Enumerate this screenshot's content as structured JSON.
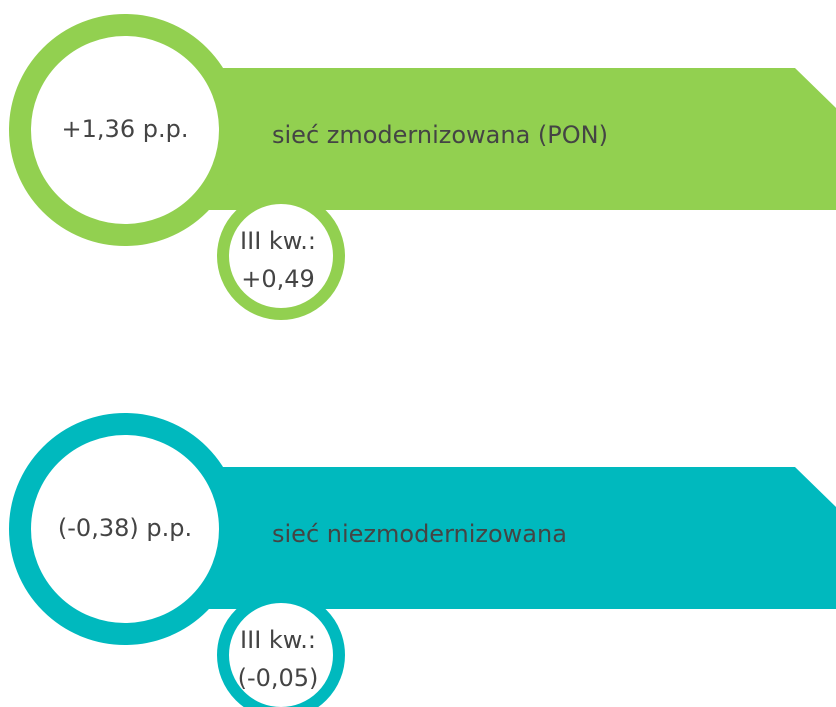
{
  "items": [
    {
      "value": "+1,36 p.p.",
      "label": "sieć zmodernizowana (PON)",
      "quarter": "III kw.:",
      "quarter_value": "+0,49",
      "color": "#92d050"
    },
    {
      "value": "(-0,38) p.p.",
      "label": "sieć niezmodernizowana",
      "quarter": "III kw.:",
      "quarter_value": "(-0,05)",
      "color": "#00b9be"
    }
  ]
}
